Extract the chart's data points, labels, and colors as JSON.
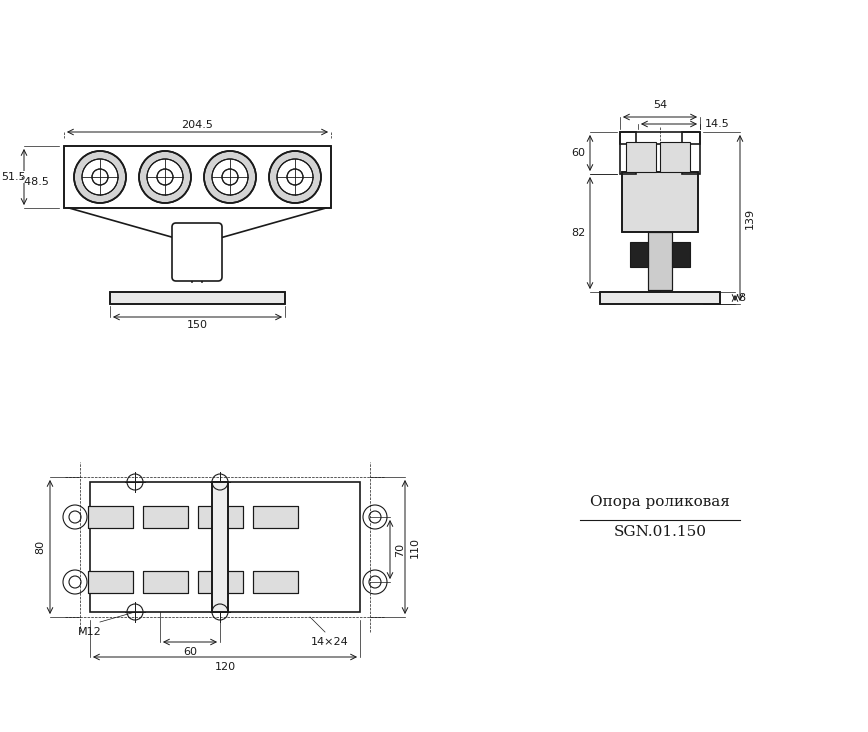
{
  "bg_color": "#ffffff",
  "line_color": "#1a1a1a",
  "dim_color": "#1a1a1a",
  "font_size_dim": 9,
  "font_size_label": 10,
  "font_size_title": 11,
  "title_line1": "Опора роликовая",
  "title_line2": "SGN.01.150",
  "dims_front": {
    "total_width": "204.5",
    "height": "51.5",
    "dia": "҆48.5",
    "base_width": "150"
  },
  "dims_side": {
    "top_width": "54",
    "groove_width": "14.5",
    "upper_height": "60",
    "lower_height": "82",
    "total_height": "139",
    "base_height": "8"
  },
  "dims_bottom": {
    "height_left": "80",
    "height_mid": "70",
    "height_right": "110",
    "bolt_label": "M12",
    "mid_width": "60",
    "total_width": "120",
    "slot_label": "14×24"
  }
}
